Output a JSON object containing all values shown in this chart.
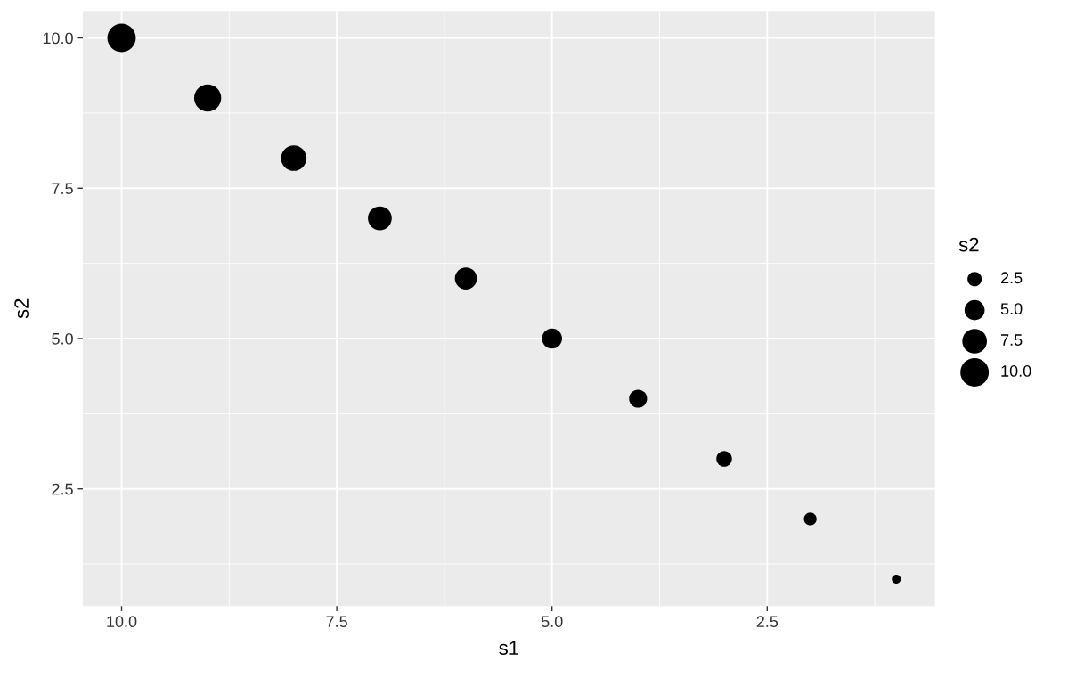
{
  "chart_data": {
    "type": "bubble",
    "xlabel": "s1",
    "ylabel": "s2",
    "legend_title": "s2",
    "x": [
      10,
      9,
      8,
      7,
      6,
      5,
      4,
      3,
      2,
      1
    ],
    "values": [
      10,
      9,
      8,
      7,
      6,
      5,
      4,
      3,
      2,
      1
    ],
    "sizes": [
      10,
      9,
      8,
      7,
      6,
      5,
      4,
      3,
      2,
      1
    ],
    "size_legend": [
      2.5,
      {
        "value": 5,
        "label": "5.0"
      },
      7.5,
      {
        "value": 10,
        "label": "10.0"
      }
    ],
    "color": "#000000",
    "xlim": [
      10.45,
      0.55
    ],
    "xticks": [
      {
        "value": 10,
        "label": "10.0"
      },
      {
        "value": 7.5,
        "label": "7.5"
      },
      {
        "value": 5,
        "label": "5.0"
      },
      {
        "value": 2.5,
        "label": "2.5"
      }
    ],
    "ylim": [
      0.55,
      10.45
    ],
    "yticks": [
      {
        "value": 2.5,
        "label": "2.5"
      },
      {
        "value": 5,
        "label": "5.0"
      },
      {
        "value": 7.5,
        "label": "7.5"
      },
      {
        "value": 10,
        "label": "10.0"
      }
    ],
    "grid": true
  }
}
